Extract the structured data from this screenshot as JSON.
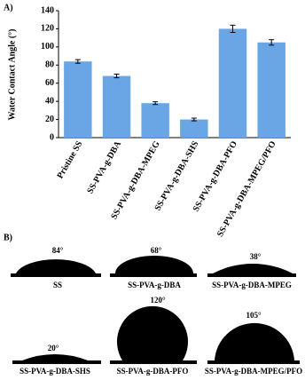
{
  "chart_data": {
    "type": "bar",
    "panel_label": "A)",
    "y_label": "Water Contact Angle (°)",
    "categories": [
      "Pristine SS",
      "SS-PVA-g-DBA",
      "SS-PVA-g-DBA-MPEG",
      "SS-PVA-g-DBA-SHS",
      "SS-PVA-g-DBA-PFO",
      "SS-PVA-g-DBA-MPEG/PFO"
    ],
    "values": [
      84,
      68,
      38,
      20,
      120,
      105
    ],
    "errors": [
      2,
      2,
      1.5,
      1.5,
      4,
      3
    ],
    "color": "#6aa6e6",
    "ylim": [
      0,
      140
    ],
    "yticks": [
      0,
      20,
      40,
      60,
      80,
      100,
      120,
      140
    ],
    "grid": false
  },
  "droplets": {
    "panel_label": "B)",
    "items": [
      {
        "angle": "84°",
        "label": "SS"
      },
      {
        "angle": "68°",
        "label": "SS-PVA-g-DBA"
      },
      {
        "angle": "38°",
        "label": "SS-PVA-g-DBA-MPEG"
      },
      {
        "angle": "20°",
        "label": "SS-PVA-g-DBA-SHS"
      },
      {
        "angle": "120°",
        "label": "SS-PVA-g-DBA-PFO"
      },
      {
        "angle": "105°",
        "label": "SS-PVA-g-DBA-MPEG/PFO"
      }
    ]
  }
}
